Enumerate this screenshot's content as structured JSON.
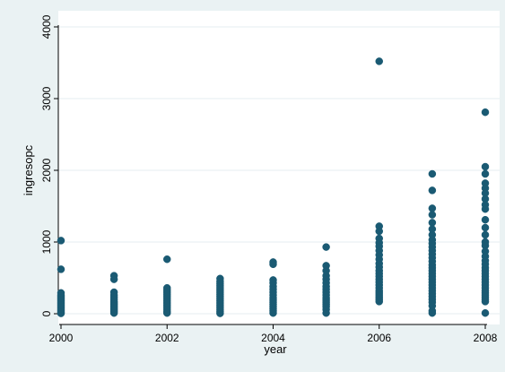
{
  "chart_data": {
    "type": "scatter",
    "title": "",
    "xlabel": "year",
    "ylabel": "ingresopc",
    "xlim": [
      2000,
      2008
    ],
    "ylim": [
      0,
      4000
    ],
    "x_ticks": [
      "2000",
      "2002",
      "2004",
      "2006",
      "2008"
    ],
    "y_ticks": [
      "0",
      "1000",
      "2000",
      "3000",
      "4000"
    ],
    "grid": "horizontal",
    "marker_color": "#1a5a73",
    "plot_background": "#ffffff",
    "outer_background": "#eaf2f3",
    "series": [
      {
        "points": [
          [
            2000,
            1020
          ],
          [
            2000,
            620
          ],
          [
            2000,
            290
          ],
          [
            2000,
            260
          ],
          [
            2000,
            240
          ],
          [
            2000,
            220
          ],
          [
            2000,
            200
          ],
          [
            2000,
            180
          ],
          [
            2000,
            160
          ],
          [
            2000,
            140
          ],
          [
            2000,
            120
          ],
          [
            2000,
            100
          ],
          [
            2000,
            80
          ],
          [
            2000,
            60
          ],
          [
            2000,
            40
          ],
          [
            2000,
            20
          ],
          [
            2000,
            5
          ],
          [
            2001,
            530
          ],
          [
            2001,
            480
          ],
          [
            2001,
            300
          ],
          [
            2001,
            260
          ],
          [
            2001,
            230
          ],
          [
            2001,
            200
          ],
          [
            2001,
            170
          ],
          [
            2001,
            150
          ],
          [
            2001,
            130
          ],
          [
            2001,
            110
          ],
          [
            2001,
            90
          ],
          [
            2001,
            70
          ],
          [
            2001,
            50
          ],
          [
            2001,
            30
          ],
          [
            2001,
            10
          ],
          [
            2002,
            760
          ],
          [
            2002,
            360
          ],
          [
            2002,
            330
          ],
          [
            2002,
            300
          ],
          [
            2002,
            270
          ],
          [
            2002,
            240
          ],
          [
            2002,
            210
          ],
          [
            2002,
            180
          ],
          [
            2002,
            150
          ],
          [
            2002,
            120
          ],
          [
            2002,
            90
          ],
          [
            2002,
            60
          ],
          [
            2002,
            30
          ],
          [
            2002,
            10
          ],
          [
            2003,
            490
          ],
          [
            2003,
            450
          ],
          [
            2003,
            420
          ],
          [
            2003,
            390
          ],
          [
            2003,
            360
          ],
          [
            2003,
            330
          ],
          [
            2003,
            300
          ],
          [
            2003,
            270
          ],
          [
            2003,
            240
          ],
          [
            2003,
            210
          ],
          [
            2003,
            180
          ],
          [
            2003,
            150
          ],
          [
            2003,
            120
          ],
          [
            2003,
            90
          ],
          [
            2003,
            60
          ],
          [
            2003,
            30
          ],
          [
            2003,
            5
          ],
          [
            2004,
            720
          ],
          [
            2004,
            690
          ],
          [
            2004,
            470
          ],
          [
            2004,
            430
          ],
          [
            2004,
            380
          ],
          [
            2004,
            340
          ],
          [
            2004,
            300
          ],
          [
            2004,
            260
          ],
          [
            2004,
            220
          ],
          [
            2004,
            190
          ],
          [
            2004,
            160
          ],
          [
            2004,
            130
          ],
          [
            2004,
            100
          ],
          [
            2004,
            70
          ],
          [
            2004,
            40
          ],
          [
            2004,
            10
          ],
          [
            2005,
            930
          ],
          [
            2005,
            670
          ],
          [
            2005,
            600
          ],
          [
            2005,
            530
          ],
          [
            2005,
            480
          ],
          [
            2005,
            430
          ],
          [
            2005,
            380
          ],
          [
            2005,
            340
          ],
          [
            2005,
            300
          ],
          [
            2005,
            260
          ],
          [
            2005,
            220
          ],
          [
            2005,
            190
          ],
          [
            2005,
            160
          ],
          [
            2005,
            130
          ],
          [
            2005,
            100
          ],
          [
            2005,
            60
          ],
          [
            2005,
            10
          ],
          [
            2006,
            3520
          ],
          [
            2006,
            1220
          ],
          [
            2006,
            1150
          ],
          [
            2006,
            1050
          ],
          [
            2006,
            990
          ],
          [
            2006,
            940
          ],
          [
            2006,
            880
          ],
          [
            2006,
            820
          ],
          [
            2006,
            760
          ],
          [
            2006,
            700
          ],
          [
            2006,
            650
          ],
          [
            2006,
            600
          ],
          [
            2006,
            560
          ],
          [
            2006,
            520
          ],
          [
            2006,
            480
          ],
          [
            2006,
            440
          ],
          [
            2006,
            400
          ],
          [
            2006,
            360
          ],
          [
            2006,
            320
          ],
          [
            2006,
            290
          ],
          [
            2006,
            260
          ],
          [
            2006,
            230
          ],
          [
            2006,
            200
          ],
          [
            2006,
            170
          ],
          [
            2007,
            1950
          ],
          [
            2007,
            1720
          ],
          [
            2007,
            1470
          ],
          [
            2007,
            1380
          ],
          [
            2007,
            1270
          ],
          [
            2007,
            1180
          ],
          [
            2007,
            1100
          ],
          [
            2007,
            1030
          ],
          [
            2007,
            980
          ],
          [
            2007,
            930
          ],
          [
            2007,
            880
          ],
          [
            2007,
            830
          ],
          [
            2007,
            780
          ],
          [
            2007,
            730
          ],
          [
            2007,
            680
          ],
          [
            2007,
            640
          ],
          [
            2007,
            600
          ],
          [
            2007,
            560
          ],
          [
            2007,
            520
          ],
          [
            2007,
            480
          ],
          [
            2007,
            440
          ],
          [
            2007,
            400
          ],
          [
            2007,
            360
          ],
          [
            2007,
            320
          ],
          [
            2007,
            280
          ],
          [
            2007,
            240
          ],
          [
            2007,
            200
          ],
          [
            2007,
            160
          ],
          [
            2007,
            110
          ],
          [
            2007,
            40
          ],
          [
            2007,
            10
          ],
          [
            2008,
            2810
          ],
          [
            2008,
            2050
          ],
          [
            2008,
            1950
          ],
          [
            2008,
            1820
          ],
          [
            2008,
            1750
          ],
          [
            2008,
            1680
          ],
          [
            2008,
            1600
          ],
          [
            2008,
            1520
          ],
          [
            2008,
            1460
          ],
          [
            2008,
            1310
          ],
          [
            2008,
            1200
          ],
          [
            2008,
            1100
          ],
          [
            2008,
            1000
          ],
          [
            2008,
            950
          ],
          [
            2008,
            870
          ],
          [
            2008,
            800
          ],
          [
            2008,
            740
          ],
          [
            2008,
            690
          ],
          [
            2008,
            640
          ],
          [
            2008,
            600
          ],
          [
            2008,
            560
          ],
          [
            2008,
            520
          ],
          [
            2008,
            480
          ],
          [
            2008,
            440
          ],
          [
            2008,
            400
          ],
          [
            2008,
            360
          ],
          [
            2008,
            320
          ],
          [
            2008,
            290
          ],
          [
            2008,
            260
          ],
          [
            2008,
            230
          ],
          [
            2008,
            200
          ],
          [
            2008,
            170
          ],
          [
            2008,
            10
          ]
        ]
      }
    ]
  }
}
